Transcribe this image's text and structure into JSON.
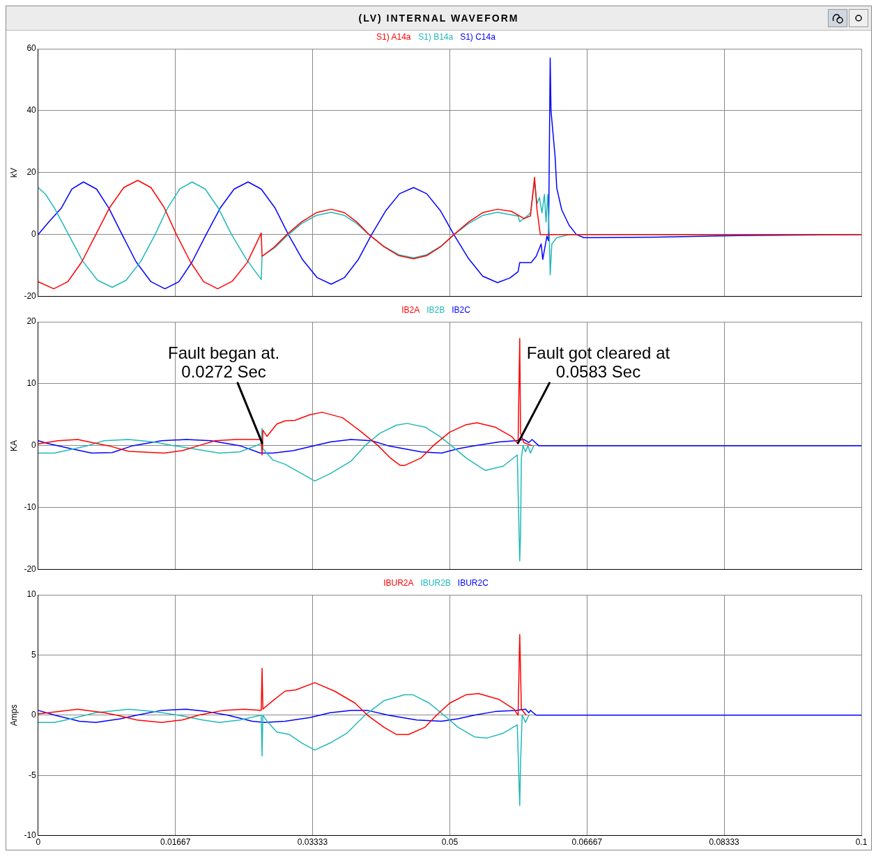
{
  "chart_data": [
    {
      "type": "line",
      "title": "(LV) INTERNAL WAVEFORM",
      "ylabel": "kV",
      "xlim": [
        0,
        0.1
      ],
      "xticks": [
        0,
        0.01667,
        0.03333,
        0.05,
        0.06667,
        0.08333,
        0.1
      ],
      "ylim": [
        -20,
        60
      ],
      "yticks": [
        -20,
        0,
        20,
        40,
        60
      ],
      "grid": true,
      "legend": "top",
      "marker": "none",
      "line_style": "solid",
      "tick_labels": "y",
      "series": [
        {
          "name": "S1) A14a",
          "color": "#ff0000",
          "x": [
            0,
            0.0019,
            0.0036,
            0.0053,
            0.007,
            0.0087,
            0.0104,
            0.0121,
            0.0137,
            0.0153,
            0.0168,
            0.0185,
            0.0201,
            0.0218,
            0.0236,
            0.0254,
            0.0271,
            0.0272,
            0.0287,
            0.0302,
            0.032,
            0.0338,
            0.0356,
            0.0372,
            0.0387,
            0.0402,
            0.042,
            0.0438,
            0.0456,
            0.0472,
            0.0489,
            0.0505,
            0.0523,
            0.054,
            0.0558,
            0.0575,
            0.059,
            0.0598,
            0.0603,
            0.0606,
            0.061,
            0.1
          ],
          "values": [
            -15.2,
            -17.5,
            -15.2,
            -8.8,
            0,
            8.8,
            15.2,
            17.5,
            15.2,
            8.8,
            0,
            -8.8,
            -15.2,
            -17.5,
            -15,
            -9,
            0.5,
            -7,
            -4,
            0,
            4.1,
            7.1,
            8.2,
            7.1,
            4.1,
            0,
            -3.9,
            -6.8,
            -7.8,
            -6.8,
            -3.9,
            0,
            4.1,
            7.1,
            8.2,
            7.5,
            5.2,
            6,
            18.5,
            8,
            0,
            0
          ]
        },
        {
          "name": "S1) B14a",
          "color": "#20b8b8",
          "x": [
            0,
            0.0009,
            0.002,
            0.0037,
            0.0054,
            0.0072,
            0.009,
            0.0107,
            0.0125,
            0.0142,
            0.0157,
            0.0172,
            0.0187,
            0.0203,
            0.0219,
            0.0235,
            0.0253,
            0.0271,
            0.0272,
            0.0287,
            0.0302,
            0.032,
            0.0338,
            0.0356,
            0.0372,
            0.0387,
            0.0402,
            0.042,
            0.0438,
            0.0456,
            0.0472,
            0.0489,
            0.0505,
            0.0523,
            0.054,
            0.0558,
            0.0583,
            0.0585,
            0.0592,
            0.0598,
            0.0603,
            0.0606,
            0.0609,
            0.0612,
            0.0615,
            0.0617,
            0.0619,
            0.0621,
            0.0622,
            0.0624,
            0.063,
            0.0645,
            0.1
          ],
          "values": [
            15.2,
            13,
            8.5,
            0,
            -8.5,
            -14.7,
            -17,
            -14.7,
            -8.5,
            0,
            8.5,
            14.7,
            17,
            14.7,
            8.5,
            0,
            -8,
            -14.5,
            -7,
            -4.3,
            -0.5,
            3.6,
            6.2,
            7.2,
            6.2,
            3.6,
            0,
            -3.8,
            -6.5,
            -7.5,
            -6.5,
            -3.8,
            0,
            3.6,
            6.2,
            7.2,
            6,
            4.2,
            5.5,
            7,
            17,
            10,
            12,
            7,
            13,
            4,
            13,
            -1,
            -13,
            -3,
            -1,
            0,
            0
          ]
        },
        {
          "name": "S1) C14a",
          "color": "#0000ff",
          "x": [
            0,
            0.0014,
            0.0028,
            0.0041,
            0.0055,
            0.0071,
            0.0086,
            0.0102,
            0.0119,
            0.0137,
            0.0154,
            0.0171,
            0.0187,
            0.0204,
            0.0221,
            0.0238,
            0.0255,
            0.0271,
            0.0288,
            0.0304,
            0.0321,
            0.0339,
            0.0356,
            0.0372,
            0.0389,
            0.0405,
            0.0422,
            0.0439,
            0.0456,
            0.0472,
            0.0489,
            0.0505,
            0.0523,
            0.054,
            0.0558,
            0.0573,
            0.0583,
            0.0585,
            0.0599,
            0.0605,
            0.0611,
            0.0613,
            0.0618,
            0.062,
            0.0622,
            0.0623,
            0.0628,
            0.063,
            0.0636,
            0.0645,
            0.0654,
            0.0663,
            0.075,
            0.085,
            0.1
          ],
          "values": [
            0,
            4.4,
            8.5,
            14.7,
            17,
            14.7,
            8.5,
            0,
            -8.8,
            -15.2,
            -17.5,
            -15.2,
            -8.8,
            0,
            8.5,
            14.7,
            17,
            14.7,
            8.5,
            0,
            -8,
            -13.9,
            -16,
            -13.9,
            -8,
            0,
            7.6,
            13.2,
            15.2,
            13.2,
            7.6,
            0,
            -7.8,
            -13.4,
            -15.5,
            -14,
            -12,
            -9,
            -9,
            -7,
            -3,
            -8,
            -0.5,
            -2,
            57,
            40,
            25,
            15,
            8,
            3,
            0,
            -1,
            -0.8,
            -0.3,
            0
          ]
        }
      ]
    },
    {
      "type": "line",
      "ylabel": "KA",
      "xlim": [
        0,
        0.1
      ],
      "xticks": [
        0,
        0.01667,
        0.03333,
        0.05,
        0.06667,
        0.08333,
        0.1
      ],
      "ylim": [
        -20,
        20
      ],
      "yticks": [
        -20,
        -10,
        0,
        10,
        20
      ],
      "grid": true,
      "legend": "top",
      "marker": "none",
      "line_style": "solid",
      "tick_labels": "y",
      "annotations": [
        {
          "text": "Fault began at.\n0.0272 Sec",
          "x": 0.0272,
          "y": 0
        },
        {
          "text": "Fault got cleared at\n0.0583 Sec",
          "x": 0.0583,
          "y": 0
        }
      ],
      "series": [
        {
          "name": "IB2A",
          "color": "#ff0000",
          "x": [
            0,
            0.0024,
            0.0048,
            0.0066,
            0.0085,
            0.011,
            0.0153,
            0.0175,
            0.0195,
            0.0215,
            0.024,
            0.0271,
            0.0272,
            0.0273,
            0.0278,
            0.029,
            0.03,
            0.0312,
            0.033,
            0.0345,
            0.037,
            0.039,
            0.0413,
            0.0428,
            0.044,
            0.0445,
            0.0465,
            0.048,
            0.05,
            0.052,
            0.0533,
            0.0555,
            0.0575,
            0.0583,
            0.0585,
            0.0586,
            0.059,
            0.06
          ],
          "values": [
            0.3,
            0.8,
            1,
            0.5,
            0,
            -0.9,
            -1.2,
            -0.8,
            0,
            0.8,
            1,
            1,
            -1.5,
            2.5,
            1.5,
            3.5,
            4,
            4.1,
            5,
            5.4,
            4.5,
            2.5,
            0,
            -2,
            -3.2,
            -3.2,
            -2,
            0,
            2.2,
            3.4,
            3.7,
            3,
            1.5,
            0.3,
            17.3,
            2,
            0.5,
            0
          ]
        },
        {
          "name": "IB2B",
          "color": "#20b8b8",
          "x": [
            0,
            0.002,
            0.006,
            0.008,
            0.011,
            0.014,
            0.0165,
            0.022,
            0.0245,
            0.0265,
            0.0271,
            0.0272,
            0.0273,
            0.0285,
            0.03,
            0.032,
            0.0336,
            0.0355,
            0.038,
            0.0397,
            0.0415,
            0.0435,
            0.0448,
            0.047,
            0.0488,
            0.0502,
            0.052,
            0.0543,
            0.0565,
            0.0582,
            0.0585,
            0.0586,
            0.0587,
            0.0589,
            0.0592,
            0.0595,
            0.0598,
            0.0602
          ],
          "values": [
            -1.2,
            -1.2,
            0,
            0.8,
            1,
            0.6,
            0,
            -1.2,
            -1,
            0,
            0.4,
            2.8,
            -0.5,
            -2.3,
            -3,
            -4.5,
            -5.7,
            -4.5,
            -2.5,
            0,
            2,
            3.3,
            3.6,
            3,
            1.5,
            0,
            -2,
            -4,
            -3.3,
            -1.5,
            -18.6,
            -14,
            -2,
            0,
            -1,
            0,
            -1.2,
            0
          ]
        },
        {
          "name": "IB2C",
          "color": "#0000ff",
          "x": [
            0,
            0.001,
            0.004,
            0.0065,
            0.009,
            0.0115,
            0.015,
            0.018,
            0.021,
            0.0245,
            0.027,
            0.0285,
            0.031,
            0.0335,
            0.0355,
            0.038,
            0.0405,
            0.0425,
            0.0465,
            0.049,
            0.051,
            0.053,
            0.056,
            0.058,
            0.059,
            0.0596,
            0.06,
            0.0608,
            0.1
          ],
          "values": [
            0.8,
            0.4,
            -0.5,
            -1.2,
            -1.1,
            0,
            0.8,
            1,
            0.8,
            0,
            -1.2,
            -1.2,
            -0.8,
            0,
            0.6,
            1,
            0.8,
            0,
            -1,
            -1.2,
            -0.5,
            0,
            0.6,
            0.8,
            1,
            0.5,
            1,
            0,
            0
          ]
        }
      ]
    },
    {
      "type": "line",
      "ylabel": "Amps",
      "xlim": [
        0,
        0.1
      ],
      "xticks": [
        0,
        0.01667,
        0.03333,
        0.05,
        0.06667,
        0.08333,
        0.1
      ],
      "ylim": [
        -10,
        10
      ],
      "yticks": [
        -10,
        -5,
        0,
        5,
        10
      ],
      "grid": true,
      "legend": "top",
      "marker": "none",
      "line_style": "solid",
      "series": [
        {
          "name": "IBUR2A",
          "color": "#ff0000",
          "x": [
            0,
            0.0048,
            0.008,
            0.0095,
            0.012,
            0.015,
            0.0175,
            0.0195,
            0.0225,
            0.025,
            0.0271,
            0.0272,
            0.0273,
            0.0285,
            0.03,
            0.0313,
            0.0336,
            0.036,
            0.0385,
            0.04,
            0.042,
            0.0435,
            0.045,
            0.047,
            0.0484,
            0.05,
            0.052,
            0.0535,
            0.056,
            0.0578,
            0.0583,
            0.0584,
            0.0585,
            0.0587,
            0.0593
          ],
          "values": [
            0.1,
            0.5,
            0.2,
            0,
            -0.4,
            -0.6,
            -0.4,
            0,
            0.4,
            0.5,
            0.4,
            3.9,
            0.5,
            1.2,
            2,
            2.1,
            2.7,
            2,
            1,
            0,
            -1,
            -1.6,
            -1.6,
            -1,
            0,
            1,
            1.7,
            1.8,
            1.3,
            0.5,
            0,
            3.3,
            6.7,
            0.5,
            0
          ]
        },
        {
          "name": "IBUR2B",
          "color": "#20b8b8",
          "x": [
            0,
            0.002,
            0.004,
            0.007,
            0.011,
            0.014,
            0.017,
            0.02,
            0.022,
            0.0245,
            0.0271,
            0.0272,
            0.0273,
            0.0278,
            0.029,
            0.0305,
            0.032,
            0.0336,
            0.0355,
            0.0375,
            0.0397,
            0.042,
            0.0445,
            0.0455,
            0.0475,
            0.0493,
            0.051,
            0.053,
            0.0545,
            0.0565,
            0.0582,
            0.0585,
            0.0586,
            0.0588,
            0.0592,
            0.0596
          ],
          "values": [
            -0.6,
            -0.6,
            -0.3,
            0.2,
            0.5,
            0.3,
            0,
            -0.4,
            -0.6,
            -0.4,
            0,
            -3.4,
            0,
            -0.5,
            -1.4,
            -1.6,
            -2.3,
            -2.9,
            -2.3,
            -1.5,
            0,
            1.2,
            1.7,
            1.7,
            1,
            0,
            -1,
            -1.8,
            -1.9,
            -1.5,
            -0.8,
            -7.5,
            -4,
            0,
            -0.6,
            0
          ]
        },
        {
          "name": "IBUR2C",
          "color": "#0000ff",
          "x": [
            0,
            0.002,
            0.005,
            0.007,
            0.01,
            0.012,
            0.015,
            0.018,
            0.0205,
            0.023,
            0.026,
            0.0275,
            0.03,
            0.033,
            0.0355,
            0.038,
            0.04,
            0.0425,
            0.046,
            0.049,
            0.051,
            0.053,
            0.0555,
            0.058,
            0.0592,
            0.0596,
            0.0598,
            0.0605,
            0.1
          ],
          "values": [
            0.4,
            0,
            -0.5,
            -0.6,
            -0.3,
            0,
            0.4,
            0.5,
            0.3,
            0,
            -0.5,
            -0.6,
            -0.5,
            -0.2,
            0.2,
            0.4,
            0.4,
            0,
            -0.4,
            -0.5,
            -0.3,
            0,
            0.3,
            0.4,
            0.5,
            0.2,
            0.4,
            0,
            0
          ]
        }
      ]
    }
  ]
}
